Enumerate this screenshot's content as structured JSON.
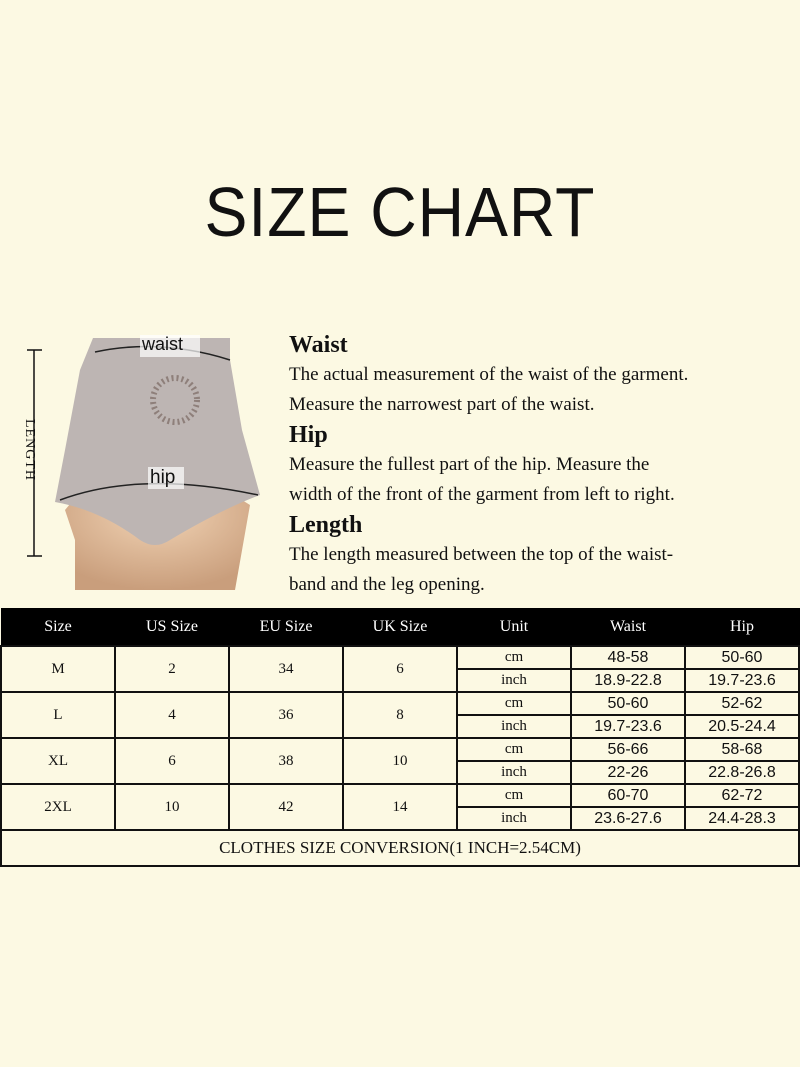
{
  "title": "SIZE CHART",
  "figure": {
    "waist_label": "waist",
    "hip_label": "hip",
    "length_label": "LENGTH"
  },
  "sections": [
    {
      "heading": "Waist",
      "lines": [
        "The actual measurement of the waist of the garment.",
        "Measure the narrowest part of the waist."
      ]
    },
    {
      "heading": "Hip",
      "lines": [
        "Measure the fullest part of the  hip. Measure the",
        "width of the front of the garment from left to right."
      ]
    },
    {
      "heading": "Length",
      "lines": [
        "The length measured between the top of the waist-",
        "band and the leg opening."
      ]
    }
  ],
  "table": {
    "headers": [
      "Size",
      "US Size",
      "EU Size",
      "UK Size",
      "Unit",
      "Waist",
      "Hip"
    ],
    "rows": [
      {
        "size": "M",
        "us": "2",
        "eu": "34",
        "uk": "6",
        "cm": {
          "unit": "cm",
          "waist": "48-58",
          "hip": "50-60"
        },
        "inch": {
          "unit": "inch",
          "waist": "18.9-22.8",
          "hip": "19.7-23.6"
        }
      },
      {
        "size": "L",
        "us": "4",
        "eu": "36",
        "uk": "8",
        "cm": {
          "unit": "cm",
          "waist": "50-60",
          "hip": "52-62"
        },
        "inch": {
          "unit": "inch",
          "waist": "19.7-23.6",
          "hip": "20.5-24.4"
        }
      },
      {
        "size": "XL",
        "us": "6",
        "eu": "38",
        "uk": "10",
        "cm": {
          "unit": "cm",
          "waist": "56-66",
          "hip": "58-68"
        },
        "inch": {
          "unit": "inch",
          "waist": "22-26",
          "hip": "22.8-26.8"
        }
      },
      {
        "size": "2XL",
        "us": "10",
        "eu": "42",
        "uk": "14",
        "cm": {
          "unit": "cm",
          "waist": "60-70",
          "hip": "62-72"
        },
        "inch": {
          "unit": "inch",
          "waist": "23.6-27.6",
          "hip": "24.4-28.3"
        }
      }
    ],
    "footer": "CLOTHES SIZE CONVERSION(1 INCH=2.54CM)"
  }
}
